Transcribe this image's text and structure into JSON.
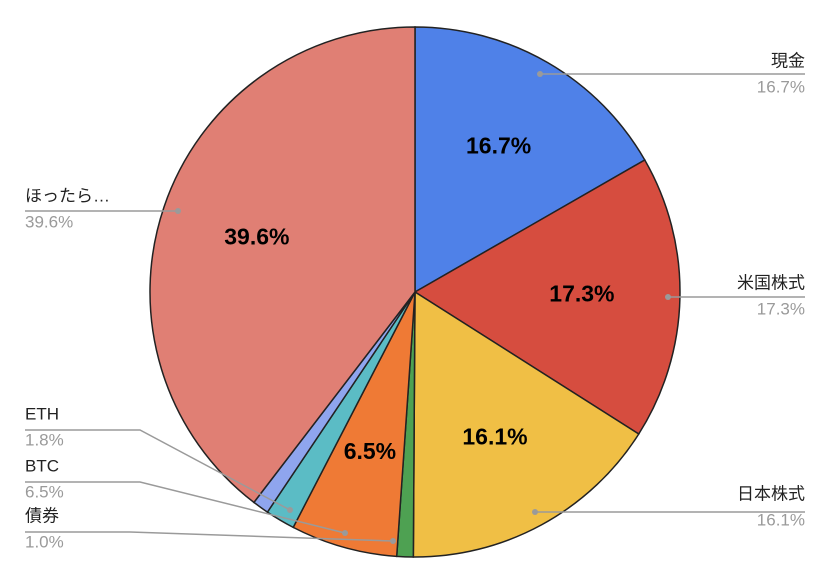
{
  "chart_data": {
    "type": "pie",
    "categories": [
      "現金",
      "米国株式",
      "日本株式",
      "債券",
      "BTC",
      "ETH",
      null,
      "ほったら…"
    ],
    "values": [
      16.7,
      17.3,
      16.1,
      1.0,
      6.5,
      1.8,
      1.0,
      39.6
    ],
    "value_labels": [
      "16.7%",
      "17.3%",
      "16.1%",
      "1.0%",
      "6.5%",
      "1.8%",
      null,
      "39.6%"
    ],
    "colors": [
      "#4f81e8",
      "#d64d3f",
      "#f0bf45",
      "#4ea152",
      "#ef7a35",
      "#5bbcc5",
      "#8fa5ee",
      "#e07f74"
    ]
  }
}
